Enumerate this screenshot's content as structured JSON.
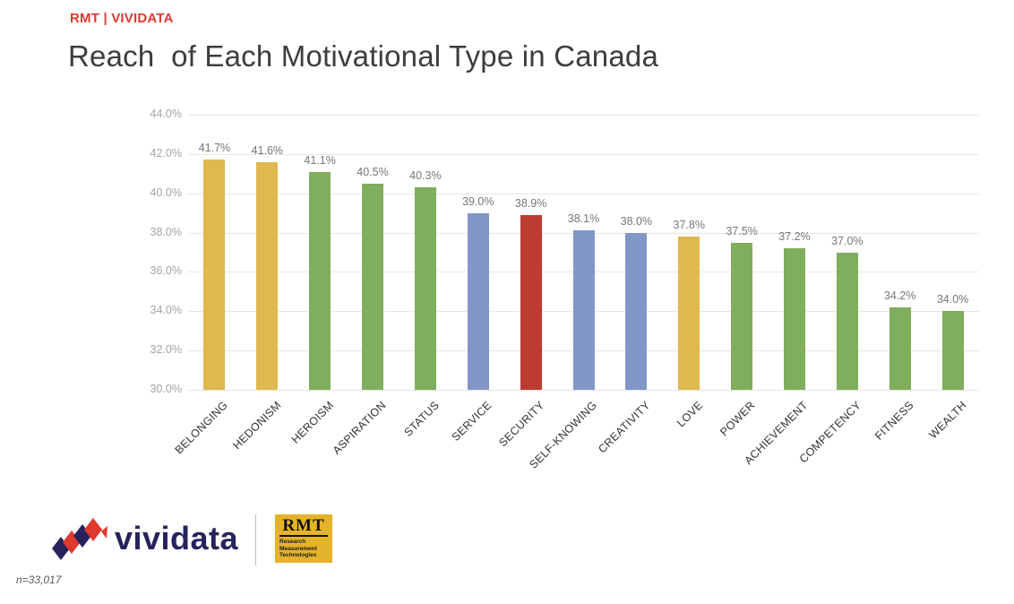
{
  "header": {
    "brand": "RMT | VIVIDATA"
  },
  "title": "Reach  of Each Motivational Type in Canada",
  "chart_data": {
    "type": "bar",
    "title": "Reach of Each Motivational Type in Canada",
    "categories": [
      "BELONGING",
      "HEDONISM",
      "HEROISM",
      "ASPIRATION",
      "STATUS",
      "SERVICE",
      "SECURITY",
      "SELF-KNOWING",
      "CREATIVITY",
      "LOVE",
      "POWER",
      "ACHIEVEMENT",
      "COMPETENCY",
      "FITNESS",
      "WEALTH"
    ],
    "values": [
      41.7,
      41.6,
      41.1,
      40.5,
      40.3,
      39.0,
      38.9,
      38.1,
      38.0,
      37.8,
      37.5,
      37.2,
      37.0,
      34.2,
      34.0
    ],
    "value_labels": [
      "41.7%",
      "41.6%",
      "41.1%",
      "40.5%",
      "40.3%",
      "39.0%",
      "38.9%",
      "38.1%",
      "38.0%",
      "37.8%",
      "37.5%",
      "37.2%",
      "37.0%",
      "34.2%",
      "34.0%"
    ],
    "bar_color_keys": [
      "gold",
      "gold",
      "green",
      "green",
      "green",
      "blue",
      "red",
      "blue",
      "blue",
      "gold",
      "green",
      "green",
      "green",
      "green",
      "green"
    ],
    "palette": {
      "gold": "#DFB94F",
      "green": "#7FAE5C",
      "blue": "#8296C8",
      "red": "#BE3B31"
    },
    "ylim": [
      30,
      44
    ],
    "ytick_step": 2,
    "ytick_labels": [
      "30.0%",
      "32.0%",
      "34.0%",
      "36.0%",
      "38.0%",
      "40.0%",
      "42.0%",
      "44.0%"
    ],
    "grid": true,
    "legend": false,
    "xlabel": "",
    "ylabel": ""
  },
  "footer": {
    "vividata_wordmark": "vividata",
    "rmt_logo": {
      "title": "RMT",
      "lines": [
        "Research",
        "Measurement",
        "Technologies"
      ]
    },
    "sample_note": "n=33,017",
    "brand_colors": {
      "vividata_navy": "#26235C",
      "vividata_red": "#E0392E",
      "rmt_gold": "#E5B32B"
    }
  }
}
